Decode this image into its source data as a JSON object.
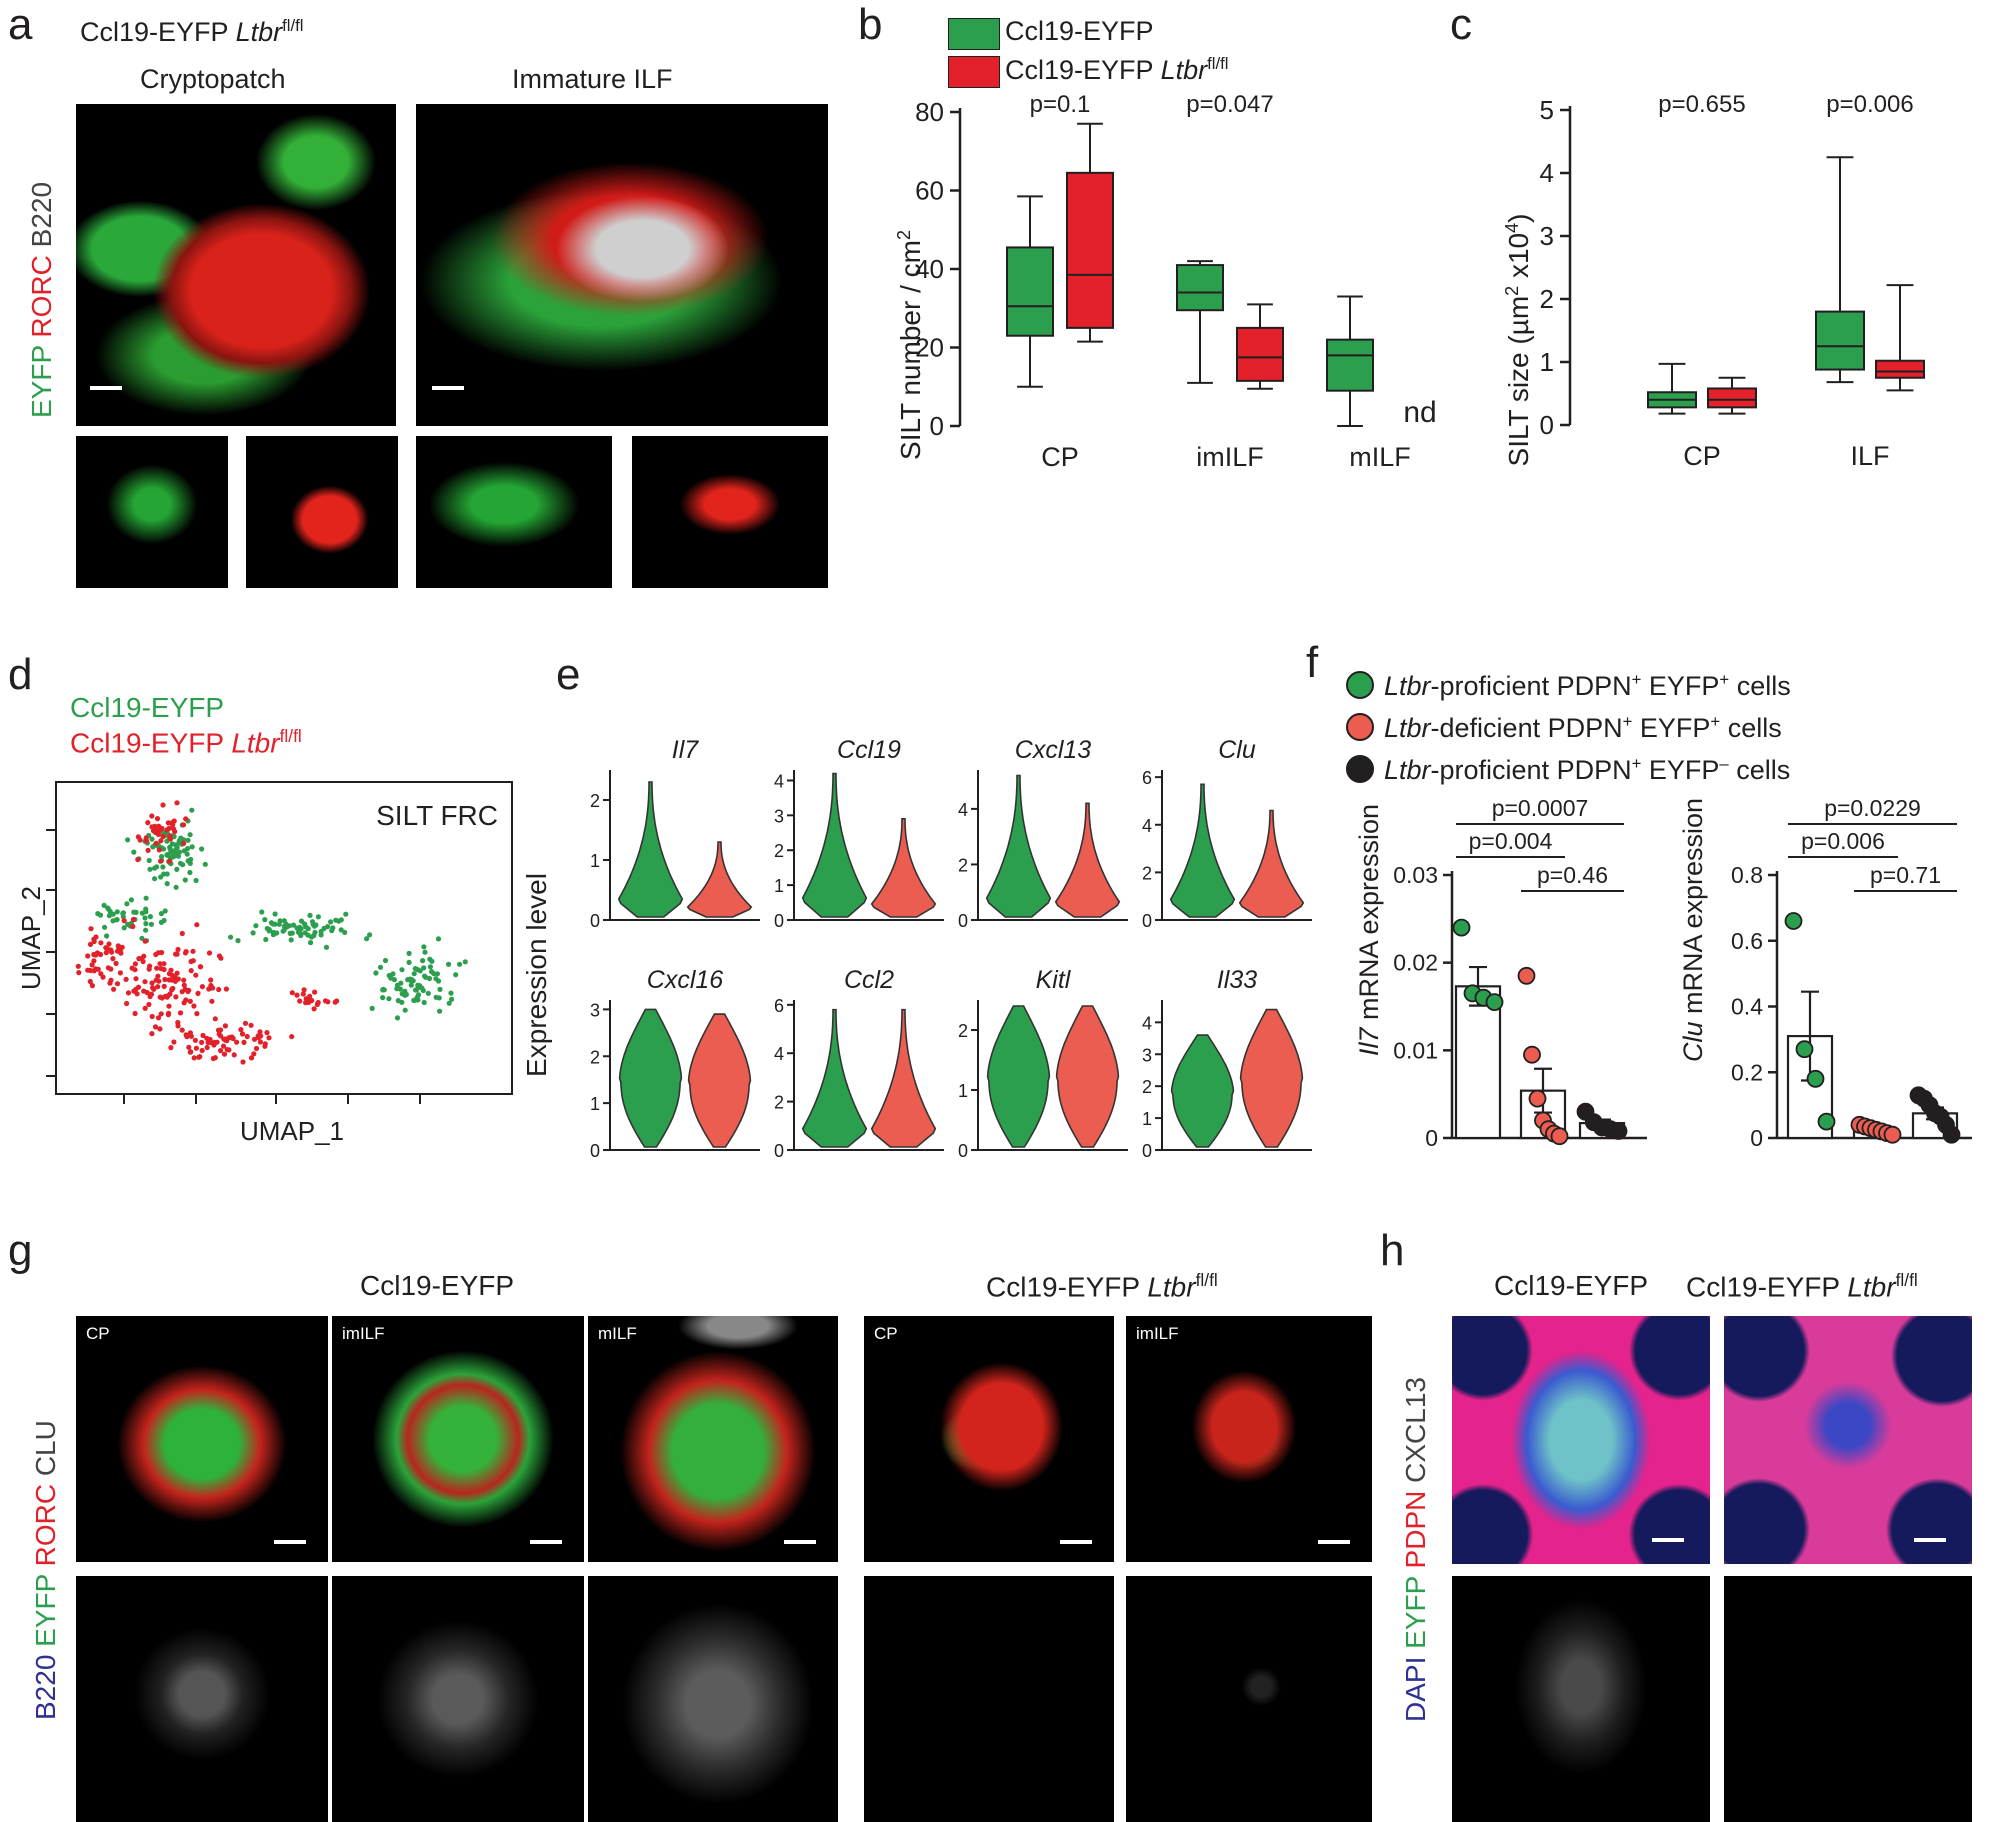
{
  "colors": {
    "green": "#2c9f4e",
    "red": "#e2212a",
    "salmon": "#ea5d50",
    "dark": "#231f20",
    "grey": "#555555",
    "black_panel": "#000000"
  },
  "panel_a": {
    "label": "a",
    "title_prefix": "Ccl19-EYFP ",
    "title_gene": "Ltbr",
    "title_sup": "fl/fl",
    "col1": "Cryptopatch",
    "col2": "Immature ILF",
    "ylabel": {
      "eyfp": "EYFP",
      "rorc": "RORC",
      "b220": "B220"
    }
  },
  "panel_b": {
    "label": "b",
    "legend": {
      "item1": "Ccl19-EYFP",
      "item2_prefix": "Ccl19-EYFP ",
      "item2_gene": "Ltbr",
      "item2_sup": "fl/fl"
    }
  },
  "panel_c": {
    "label": "c"
  },
  "panel_d": {
    "label": "d",
    "legend1": "Ccl19-EYFP",
    "legend2_prefix": "Ccl19-EYFP ",
    "legend2_gene": "Ltbr",
    "legend2_sup": "fl/fl",
    "box_label": "SILT FRC",
    "xlabel": "UMAP_1",
    "ylabel": "UMAP_2"
  },
  "panel_e": {
    "label": "e"
  },
  "panel_f": {
    "label": "f",
    "legend": [
      {
        "gene": "Ltbr",
        "rest": "-proficient PDPN",
        "s1": "+",
        "mid": " EYFP",
        "s2": "+",
        "end": " cells"
      },
      {
        "gene": "Ltbr",
        "rest": "-deficient PDPN",
        "s1": "+",
        "mid": " EYFP",
        "s2": "+",
        "end": " cells"
      },
      {
        "gene": "Ltbr",
        "rest": "-proficient PDPN",
        "s1": "+",
        "mid": " EYFP",
        "s2": "–",
        "end": " cells"
      }
    ]
  },
  "panel_g": {
    "label": "g",
    "group1": "Ccl19-EYFP",
    "group2_prefix": "Ccl19-EYFP ",
    "group2_gene": "Ltbr",
    "group2_sup": "fl/fl",
    "tags": [
      "CP",
      "imILF",
      "mILF",
      "CP",
      "imILF"
    ],
    "ylabel": {
      "b220": "B220",
      "eyfp": "EYFP",
      "rorc": "RORC",
      "clu": "CLU"
    }
  },
  "panel_h": {
    "label": "h",
    "group1": "Ccl19-EYFP",
    "group2_prefix": "Ccl19-EYFP ",
    "group2_gene": "Ltbr",
    "group2_sup": "fl/fl",
    "ylabel": {
      "dapi": "DAPI",
      "eyfp": "EYFP",
      "pdpn": "PDPN",
      "cxcl13": "CXCL13"
    }
  },
  "chart_data": [
    {
      "type": "box",
      "panel": "b",
      "ylabel": "SILT number / cm2",
      "ylim": [
        0,
        80
      ],
      "yticks": [
        0,
        20,
        40,
        60,
        80
      ],
      "categories": [
        "CP",
        "imILF",
        "mILF"
      ],
      "series": [
        {
          "name": "Ccl19-EYFP",
          "color": "#2c9f4e",
          "boxes": [
            {
              "min": 10,
              "q1": 23,
              "median": 30.5,
              "q3": 45.5,
              "max": 58.5
            },
            {
              "min": 11,
              "q1": 29.5,
              "median": 34,
              "q3": 41,
              "max": 42
            },
            {
              "min": 0,
              "q1": 9,
              "median": 18,
              "q3": 22,
              "max": 33
            }
          ]
        },
        {
          "name": "Ccl19-EYFP Ltbr fl/fl",
          "color": "#e2212a",
          "boxes": [
            {
              "min": 21.5,
              "q1": 25,
              "median": 38.5,
              "q3": 64.5,
              "max": 77
            },
            {
              "min": 9.5,
              "q1": 11.5,
              "median": 17.5,
              "q3": 25,
              "max": 31
            },
            null
          ]
        }
      ],
      "annotations": [
        "p=0.1",
        "p=0.047",
        "nd"
      ]
    },
    {
      "type": "box",
      "panel": "c",
      "ylabel": "SILT size (µm2 x104)",
      "ylim": [
        0,
        5
      ],
      "yticks": [
        0,
        1,
        2,
        3,
        4,
        5
      ],
      "categories": [
        "CP",
        "ILF"
      ],
      "series": [
        {
          "name": "Ccl19-EYFP",
          "color": "#2c9f4e",
          "boxes": [
            {
              "min": 0.18,
              "q1": 0.28,
              "median": 0.4,
              "q3": 0.52,
              "max": 0.97
            },
            {
              "min": 0.68,
              "q1": 0.88,
              "median": 1.25,
              "q3": 1.8,
              "max": 4.25
            }
          ]
        },
        {
          "name": "Ccl19-EYFP Ltbr fl/fl",
          "color": "#e2212a",
          "boxes": [
            {
              "min": 0.18,
              "q1": 0.28,
              "median": 0.4,
              "q3": 0.58,
              "max": 0.75
            },
            {
              "min": 0.55,
              "q1": 0.75,
              "median": 0.85,
              "q3": 1.02,
              "max": 2.22
            }
          ]
        }
      ],
      "annotations": [
        "p=0.655",
        "p=0.006"
      ]
    },
    {
      "type": "scatter",
      "panel": "d",
      "xlabel": "UMAP_1",
      "ylabel": "UMAP_2",
      "series": [
        {
          "name": "Ccl19-EYFP",
          "color": "#2c9f4e"
        },
        {
          "name": "Ccl19-EYFP Ltbr fl/fl",
          "color": "#e2212a"
        }
      ]
    },
    {
      "type": "violin",
      "panel": "e",
      "ylabel": "Expression level",
      "genes": [
        {
          "name": "Il7",
          "yticks": [
            0,
            1,
            2
          ],
          "ymax": 2.5,
          "g": {
            "mode": 2.3,
            "shape": "skew"
          },
          "r": {
            "mode": 1.3,
            "shape": "skew"
          }
        },
        {
          "name": "Ccl19",
          "yticks": [
            0,
            1,
            2,
            3,
            4
          ],
          "ymax": 4.3,
          "g": {
            "mode": 4.2,
            "shape": "skew"
          },
          "r": {
            "mode": 2.9,
            "shape": "skew"
          }
        },
        {
          "name": "Cxcl13",
          "yticks": [
            0,
            2,
            4
          ],
          "ymax": 5.4,
          "g": {
            "mode": 5.2,
            "shape": "skew"
          },
          "r": {
            "mode": 4.2,
            "shape": "skew"
          }
        },
        {
          "name": "Clu",
          "yticks": [
            0,
            2,
            4,
            6
          ],
          "ymax": 6.3,
          "g": {
            "mode": 5.7,
            "shape": "skew"
          },
          "r": {
            "mode": 4.6,
            "shape": "skew"
          }
        },
        {
          "name": "Cxcl16",
          "yticks": [
            0,
            1,
            2,
            3
          ],
          "ymax": 3.2,
          "g": {
            "mode": 3.0,
            "shape": "round"
          },
          "r": {
            "mode": 2.9,
            "shape": "round"
          }
        },
        {
          "name": "Ccl2",
          "yticks": [
            0,
            2,
            4,
            6
          ],
          "ymax": 6.2,
          "g": {
            "mode": 5.8,
            "shape": "skew"
          },
          "r": {
            "mode": 5.8,
            "shape": "skew"
          }
        },
        {
          "name": "Kitl",
          "yticks": [
            0,
            1,
            2
          ],
          "ymax": 2.5,
          "g": {
            "mode": 2.4,
            "shape": "round"
          },
          "r": {
            "mode": 2.4,
            "shape": "round"
          }
        },
        {
          "name": "Il33",
          "yticks": [
            0,
            1,
            2,
            3,
            4
          ],
          "ymax": 4.7,
          "g": {
            "mode": 3.6,
            "shape": "round"
          },
          "r": {
            "mode": 4.4,
            "shape": "round"
          }
        }
      ]
    },
    {
      "type": "bar",
      "panel": "f-left",
      "ylabel": "Il7 mRNA expression",
      "ylim": [
        0,
        0.03
      ],
      "yticks": [
        0,
        0.01,
        0.02,
        0.03
      ],
      "groups": [
        {
          "mean": 0.0173,
          "sem": 0.0022,
          "color": "#2c9f4e",
          "points": [
            0.024,
            0.0165,
            0.016,
            0.0155
          ]
        },
        {
          "mean": 0.0054,
          "sem": 0.0025,
          "color": "#ea5d50",
          "points": [
            0.0185,
            0.0095,
            0.0045,
            0.002,
            0.001,
            0.0005,
            0.0002
          ]
        },
        {
          "mean": 0.0017,
          "sem": 0.0004,
          "color": "#231f20",
          "points": [
            0.003,
            0.0018,
            0.0012,
            0.001,
            0.0008
          ]
        }
      ],
      "annotations": [
        "p=0.0007",
        "p=0.004",
        "p=0.46"
      ]
    },
    {
      "type": "bar",
      "panel": "f-right",
      "ylabel": "Clu mRNA expression",
      "ylim": [
        0,
        0.8
      ],
      "yticks": [
        0,
        0.2,
        0.4,
        0.6,
        0.8
      ],
      "groups": [
        {
          "mean": 0.31,
          "sem": 0.135,
          "color": "#2c9f4e",
          "points": [
            0.66,
            0.27,
            0.18,
            0.05
          ]
        },
        {
          "mean": 0.025,
          "sem": 0.006,
          "color": "#ea5d50",
          "points": [
            0.04,
            0.035,
            0.03,
            0.025,
            0.02,
            0.015,
            0.01
          ]
        },
        {
          "mean": 0.075,
          "sem": 0.018,
          "color": "#231f20",
          "points": [
            0.13,
            0.12,
            0.1,
            0.075,
            0.065,
            0.04,
            0.01
          ]
        }
      ],
      "annotations": [
        "p=0.0229",
        "p=0.006",
        "p=0.71"
      ]
    }
  ]
}
